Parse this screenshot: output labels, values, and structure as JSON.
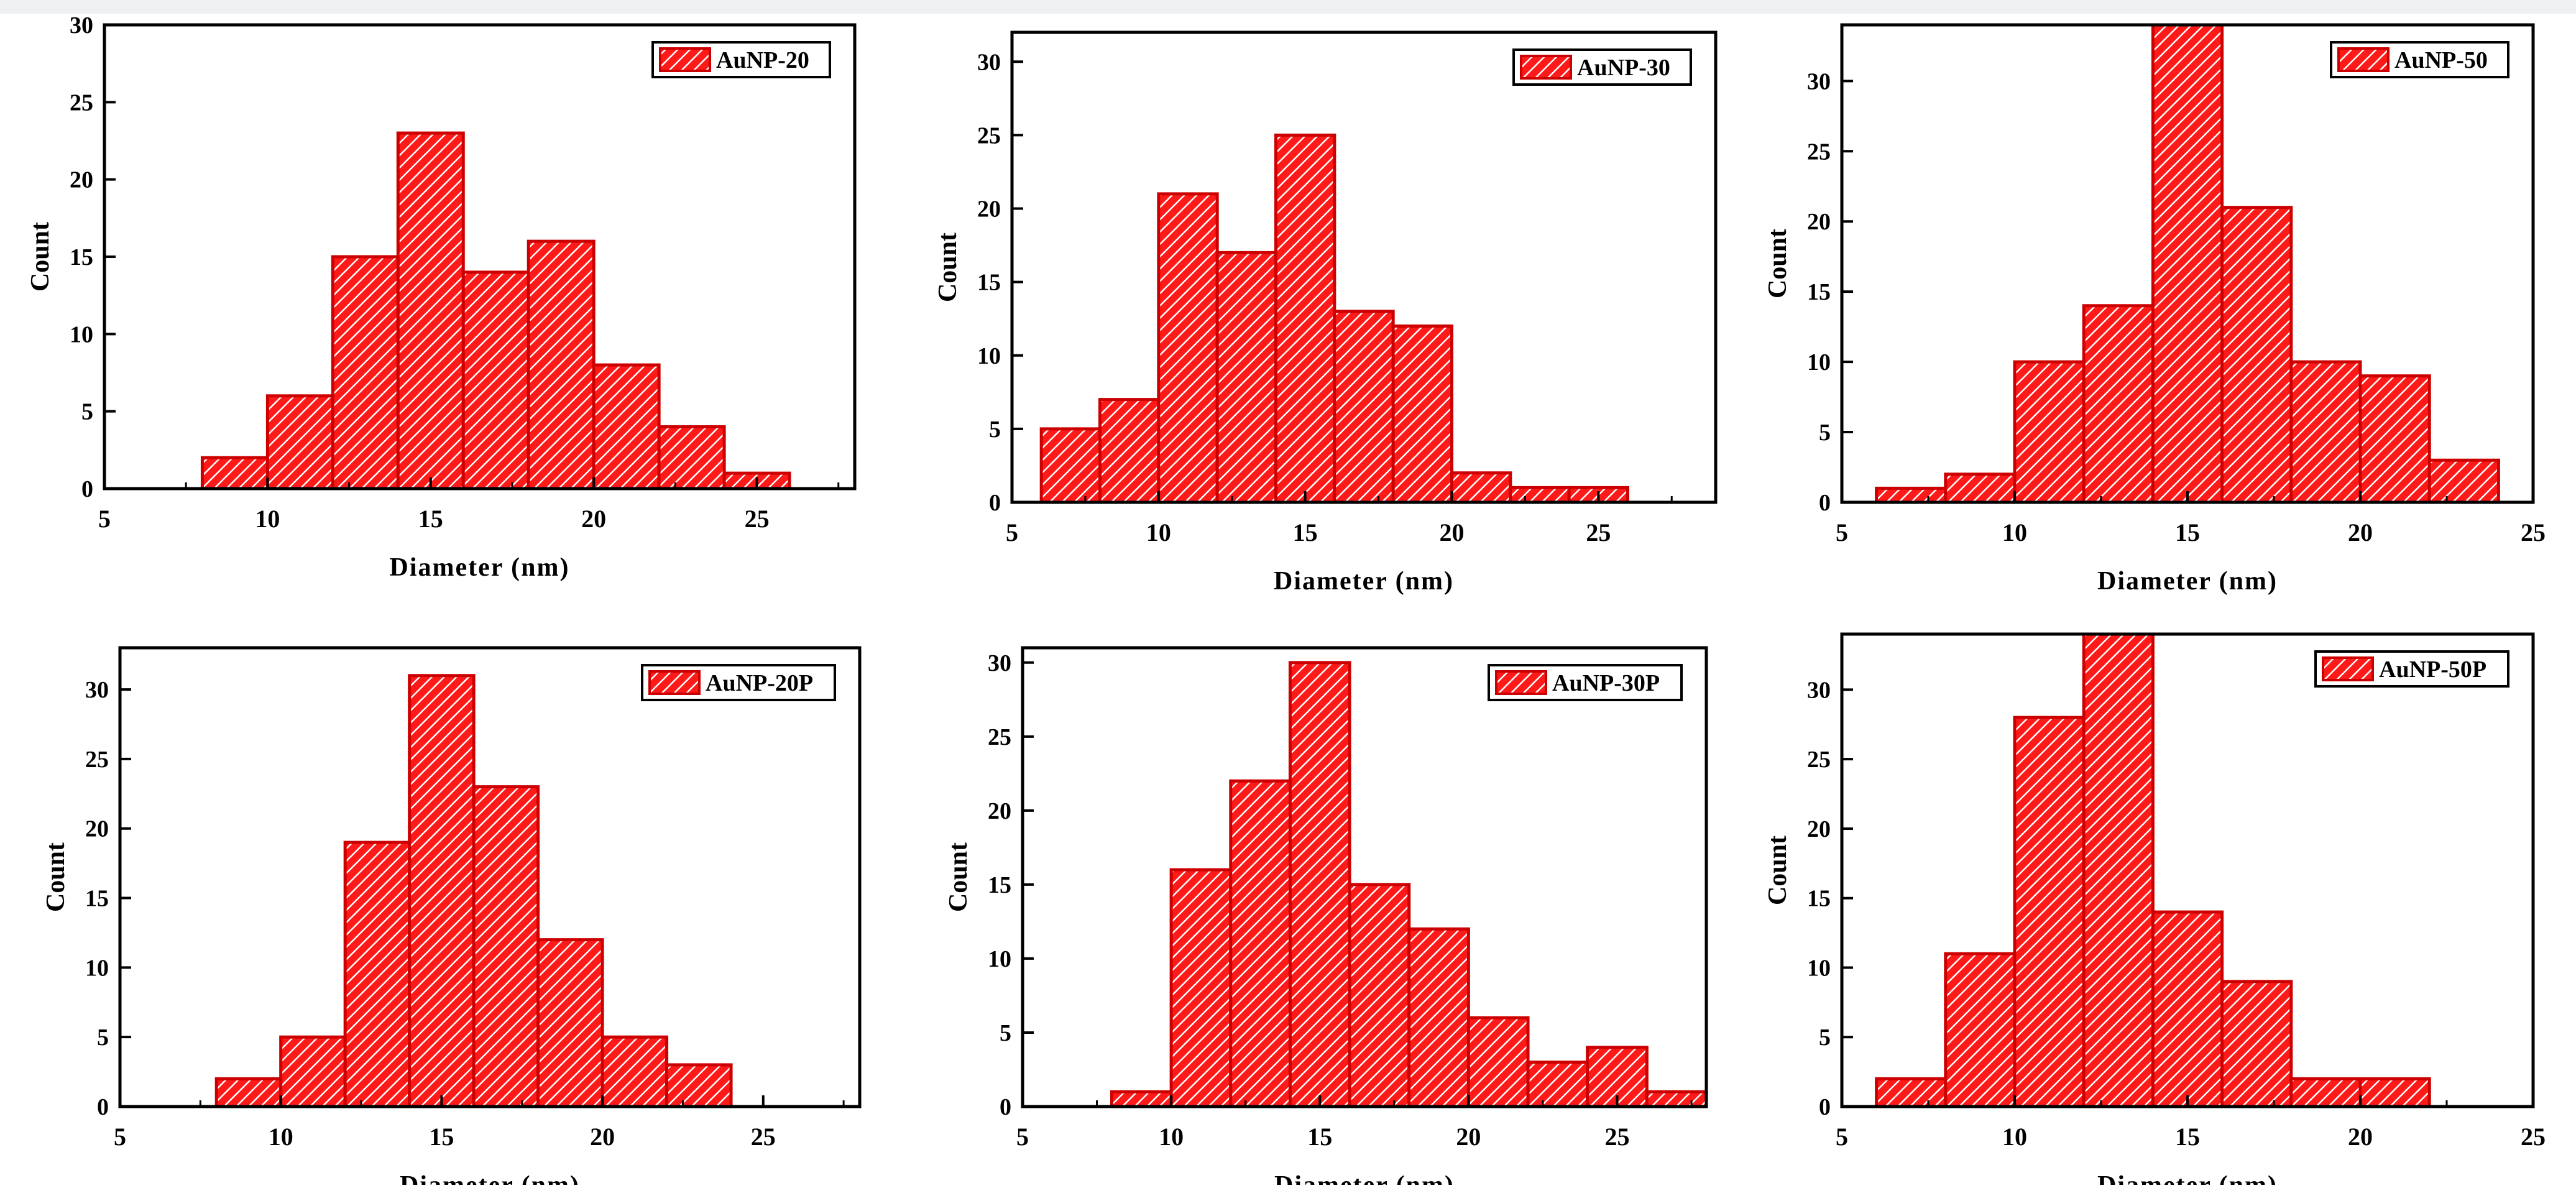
{
  "colors": {
    "bar": "#ff1a1a",
    "bar_edge": "#cc0000",
    "hatch": "#ffffff",
    "axis": "#000000"
  },
  "chart_data": [
    {
      "type": "bar",
      "name": "panel-aunp-20",
      "legend": "AuNP-20",
      "legend_position": "top-right",
      "xlabel": "Diameter (nm)",
      "ylabel": "Count",
      "xlim": [
        5,
        28
      ],
      "ylim": [
        0,
        30
      ],
      "xticks": [
        5,
        10,
        15,
        20,
        25
      ],
      "yticks": [
        0,
        5,
        10,
        15,
        20,
        25,
        30
      ],
      "bin_width": 2,
      "bins": [
        8,
        10,
        12,
        14,
        16,
        18,
        20,
        22,
        24
      ],
      "values": [
        2,
        6,
        15,
        23,
        14,
        16,
        8,
        4,
        1
      ]
    },
    {
      "type": "bar",
      "name": "panel-aunp-30",
      "legend": "AuNP-30",
      "legend_position": "top-right",
      "xlabel": "Diameter (nm)",
      "ylabel": "Count",
      "xlim": [
        5,
        29
      ],
      "ylim": [
        0,
        32
      ],
      "xticks": [
        5,
        10,
        15,
        20,
        25
      ],
      "yticks": [
        0,
        5,
        10,
        15,
        20,
        25,
        30
      ],
      "bin_width": 2,
      "bins": [
        6,
        8,
        10,
        12,
        14,
        16,
        18,
        20,
        22,
        24
      ],
      "values": [
        5,
        7,
        21,
        17,
        25,
        13,
        12,
        2,
        1,
        1
      ]
    },
    {
      "type": "bar",
      "name": "panel-aunp-50",
      "legend": "AuNP-50",
      "legend_position": "top-right",
      "xlabel": "Diameter (nm)",
      "ylabel": "Count",
      "xlim": [
        5,
        25
      ],
      "ylim": [
        0,
        34
      ],
      "xticks": [
        5,
        10,
        15,
        20,
        25
      ],
      "yticks": [
        0,
        5,
        10,
        15,
        20,
        25,
        30
      ],
      "bin_width": 2,
      "bins": [
        6,
        8,
        10,
        12,
        14,
        16,
        18,
        20,
        22
      ],
      "values": [
        1,
        2,
        10,
        14,
        34,
        21,
        10,
        9,
        3
      ]
    },
    {
      "type": "bar",
      "name": "panel-aunp-20p",
      "legend": "AuNP-20P",
      "legend_position": "top-right",
      "xlabel": "Diameter (nm)",
      "ylabel": "Count",
      "xlim": [
        5,
        28
      ],
      "ylim": [
        0,
        33
      ],
      "xticks": [
        5,
        10,
        15,
        20,
        25
      ],
      "yticks": [
        0,
        5,
        10,
        15,
        20,
        25,
        30
      ],
      "bin_width": 2,
      "bins": [
        8,
        10,
        12,
        14,
        16,
        18,
        20,
        22
      ],
      "values": [
        2,
        5,
        19,
        31,
        23,
        12,
        5,
        3
      ]
    },
    {
      "type": "bar",
      "name": "panel-aunp-30p",
      "legend": "AuNP-30P",
      "legend_position": "top-right",
      "xlabel": "Diameter (nm)",
      "ylabel": "Count",
      "xlim": [
        5,
        28
      ],
      "ylim": [
        0,
        31
      ],
      "xticks": [
        5,
        10,
        15,
        20,
        25
      ],
      "yticks": [
        0,
        5,
        10,
        15,
        20,
        25,
        30
      ],
      "bin_width": 2,
      "bins": [
        8,
        10,
        12,
        14,
        16,
        18,
        20,
        22,
        24,
        26
      ],
      "values": [
        1,
        16,
        22,
        30,
        15,
        12,
        6,
        3,
        4,
        1
      ]
    },
    {
      "type": "bar",
      "name": "panel-aunp-50p",
      "legend": "AuNP-50P",
      "legend_position": "top-right",
      "xlabel": "Diameter (nm)",
      "ylabel": "Count",
      "xlim": [
        5,
        25
      ],
      "ylim": [
        0,
        34
      ],
      "xticks": [
        5,
        10,
        15,
        20,
        25
      ],
      "yticks": [
        0,
        5,
        10,
        15,
        20,
        25,
        30
      ],
      "bin_width": 2,
      "bins": [
        6,
        8,
        10,
        12,
        14,
        16,
        18,
        20
      ],
      "values": [
        2,
        11,
        28,
        34,
        14,
        9,
        2,
        2
      ]
    }
  ]
}
